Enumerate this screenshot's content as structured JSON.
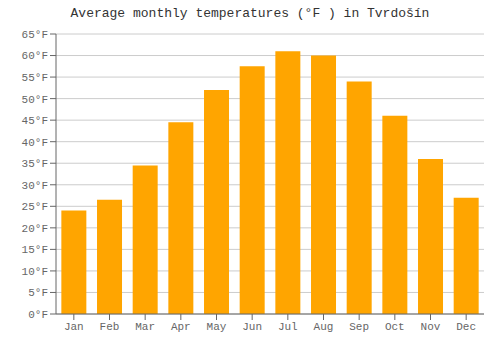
{
  "chart_data": {
    "type": "bar",
    "title": "Average monthly temperatures (°F ) in Tvrdošín",
    "categories": [
      "Jan",
      "Feb",
      "Mar",
      "Apr",
      "May",
      "Jun",
      "Jul",
      "Aug",
      "Sep",
      "Oct",
      "Nov",
      "Dec"
    ],
    "values": [
      24,
      26.5,
      34.5,
      44.5,
      52,
      57.5,
      61,
      60,
      54,
      46,
      36,
      27
    ],
    "color": "#FFA500",
    "ylim": [
      0,
      65
    ],
    "yticks": [
      {
        "value": 0,
        "label": "0°F"
      },
      {
        "value": 5,
        "label": "5°F"
      },
      {
        "value": 10,
        "label": "10°F"
      },
      {
        "value": 15,
        "label": "15°F"
      },
      {
        "value": 20,
        "label": "20°F"
      },
      {
        "value": 25,
        "label": "25°F"
      },
      {
        "value": 30,
        "label": "30°F"
      },
      {
        "value": 35,
        "label": "35°F"
      },
      {
        "value": 40,
        "label": "40°F"
      },
      {
        "value": 45,
        "label": "45°F"
      },
      {
        "value": 50,
        "label": "50°F"
      },
      {
        "value": 55,
        "label": "55°F"
      },
      {
        "value": 60,
        "label": "60°F"
      },
      {
        "value": 65,
        "label": "65°F"
      }
    ],
    "grid": true
  }
}
